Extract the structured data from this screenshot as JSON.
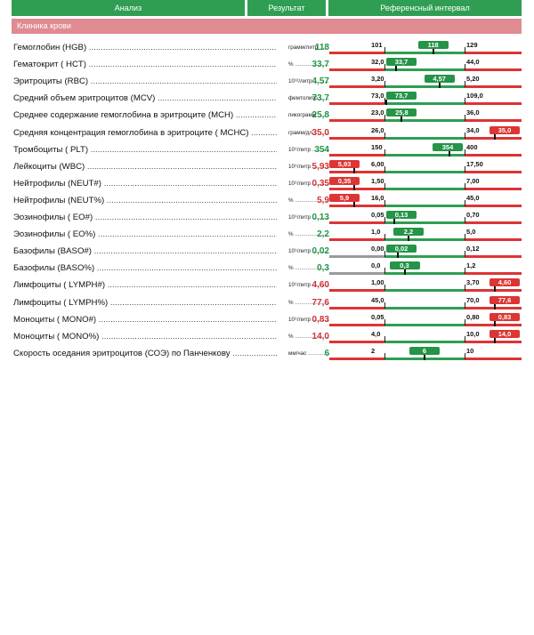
{
  "header": {
    "analysis": "Анализ",
    "result": "Результат",
    "reference": "Референсный интервал"
  },
  "section": {
    "title": "Клиника крови"
  },
  "colors": {
    "normal": "#1e9a45",
    "abnormal": "#d72f35",
    "section_bg": "#e08a91",
    "header_bg": "#2f9e52"
  },
  "rows": [
    {
      "name": "Гемоглобин (HGB)",
      "value": "118",
      "unit": "грамм/литр",
      "low": "101",
      "high": "129",
      "status": "normal"
    },
    {
      "name": "Гематокрит ( HCT)",
      "value": "33,7",
      "unit": "%",
      "low": "32,0",
      "high": "44,0",
      "status": "normal"
    },
    {
      "name": "Эритроциты (RBC)",
      "value": "4,57",
      "unit": "10¹²/литр",
      "low": "3,20",
      "high": "5,20",
      "status": "normal"
    },
    {
      "name": "Средний объем эритроцитов (MCV)",
      "value": "73,7",
      "unit": "фемтолитр",
      "low": "73,0",
      "high": "109,0",
      "status": "normal"
    },
    {
      "name": "Среднее содержание гемоглобина в эритроците (MCH)",
      "value": "25,8",
      "unit": "пикограмм",
      "low": "23,0",
      "high": "36,0",
      "status": "normal"
    },
    {
      "name": "Средняя концентрация гемоглобина в эритроците ( MCHC)",
      "value": "35,0",
      "unit": "грамм/дл",
      "low": "26,0",
      "high": "34,0",
      "status": "high"
    },
    {
      "name": "Тромбоциты ( PLT)",
      "value": "354",
      "unit": "10⁹/литр",
      "low": "150",
      "high": "400",
      "status": "normal"
    },
    {
      "name": "Лейкоциты (WBC)",
      "value": "5,93",
      "unit": "10⁹/литр",
      "low": "6,00",
      "high": "17,50",
      "status": "low"
    },
    {
      "name": "Нейтрофилы (NEUT#)",
      "value": "0,35",
      "unit": "10⁹/литр",
      "low": "1,50",
      "high": "7,00",
      "status": "low"
    },
    {
      "name": "Нейтрофилы (NEUT%)",
      "value": "5,9",
      "unit": "%",
      "low": "16,0",
      "high": "45,0",
      "status": "low"
    },
    {
      "name": "Эозинофилы ( EO#)",
      "value": "0,13",
      "unit": "10⁹/литр",
      "low": "0,05",
      "high": "0,70",
      "status": "normal"
    },
    {
      "name": "Эозинофилы ( EO%)",
      "value": "2,2",
      "unit": "%",
      "low": "1,0",
      "high": "5,0",
      "status": "normal"
    },
    {
      "name": "Базофилы (BASO#)",
      "value": "0,02",
      "unit": "10⁹/литр",
      "low": "0,00",
      "high": "0,12",
      "status": "normal"
    },
    {
      "name": "Базофилы (BASO%)",
      "value": "0,3",
      "unit": "%",
      "low": "0,0",
      "high": "1,2",
      "status": "normal"
    },
    {
      "name": "Лимфоциты ( LYMPH#)",
      "value": "4,60",
      "unit": "10⁹/литр",
      "low": "1,00",
      "high": "3,70",
      "status": "high"
    },
    {
      "name": "Лимфоциты ( LYMPH%)",
      "value": "77,6",
      "unit": "%",
      "low": "45,0",
      "high": "70,0",
      "status": "high"
    },
    {
      "name": "Моноциты ( MONO#)",
      "value": "0,83",
      "unit": "10⁹/литр",
      "low": "0,05",
      "high": "0,80",
      "status": "high"
    },
    {
      "name": "Моноциты ( MONO%)",
      "value": "14,0",
      "unit": "%",
      "low": "4,0",
      "high": "10,0",
      "status": "high"
    },
    {
      "name": "Скорость оседания эритроцитов (СОЭ) по Панченкову",
      "value": "6",
      "unit": "мм/час",
      "low": "2",
      "high": "10",
      "status": "normal"
    }
  ]
}
